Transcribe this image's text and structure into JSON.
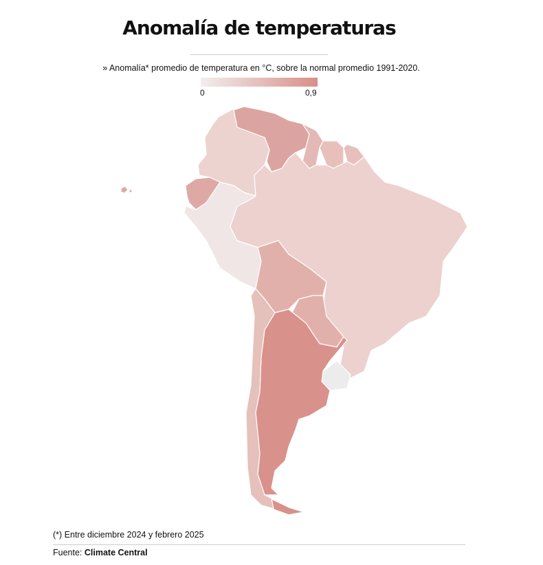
{
  "header": {
    "title": "Anomalía de temperaturas",
    "subtitle": "» Anomalía* promedio de temperatura en °C, sobre la normal promedio 1991-2020."
  },
  "legend": {
    "min_label": "0",
    "max_label": "0,9",
    "color_min": "#f1eeee",
    "color_max": "#d98f89"
  },
  "map": {
    "region": "South America",
    "countries": [
      {
        "id": "colombia",
        "anomaly": 0.3,
        "color": "#ecd3d0"
      },
      {
        "id": "venezuela",
        "anomaly": 0.6,
        "color": "#dca4a0"
      },
      {
        "id": "guyana",
        "anomaly": 0.5,
        "color": "#e4b9b5"
      },
      {
        "id": "suriname",
        "anomaly": 0.45,
        "color": "#e7c0bc"
      },
      {
        "id": "french-guiana",
        "anomaly": 0.45,
        "color": "#e7c0bc"
      },
      {
        "id": "ecuador",
        "anomaly": 0.6,
        "color": "#dea9a4"
      },
      {
        "id": "peru",
        "anomaly": 0.1,
        "color": "#efe6e5"
      },
      {
        "id": "brazil",
        "anomaly": 0.3,
        "color": "#ecd1ce"
      },
      {
        "id": "bolivia",
        "anomaly": 0.5,
        "color": "#e2b0ab"
      },
      {
        "id": "paraguay",
        "anomaly": 0.5,
        "color": "#e2b0ab"
      },
      {
        "id": "uruguay",
        "anomaly": 0.0,
        "color": "#ececec"
      },
      {
        "id": "argentina",
        "anomaly": 0.8,
        "color": "#d9918b"
      },
      {
        "id": "chile",
        "anomaly": 0.4,
        "color": "#e6c0bb"
      },
      {
        "id": "galapagos",
        "anomaly": 0.6,
        "color": "#dea9a4"
      }
    ]
  },
  "footer": {
    "note": "(*) Entre diciembre 2024 y febrero 2025",
    "source_label": "Fuente:",
    "source_name": "Climate Central"
  }
}
